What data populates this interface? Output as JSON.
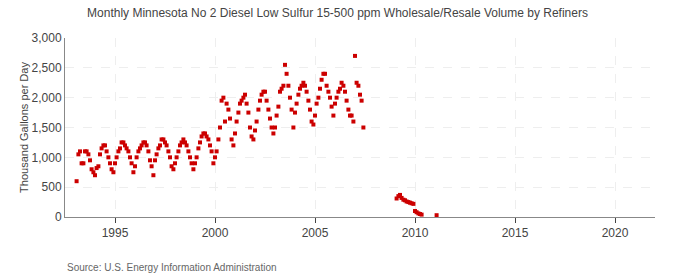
{
  "chart_data": {
    "type": "scatter",
    "title": "Monthly Minnesota No 2 Diesel Low Sulfur 15-500 ppm Wholesale/Resale Volume by Refiners",
    "ylabel": "Thousand Gallons per Day",
    "annotations": [
      "Source: U.S. Energy Information Administration"
    ],
    "color": "#cc0000",
    "marker": "square",
    "grid": true,
    "xlim": [
      1992.5,
      2022
    ],
    "ylim": [
      0,
      3000
    ],
    "xticks": [
      1995,
      2000,
      2005,
      2010,
      2015,
      2020
    ],
    "yticks": [
      0,
      500,
      {
        "value": 1000,
        "label": "1,000"
      },
      {
        "value": 1500,
        "label": "1,500"
      },
      {
        "value": 2000,
        "label": "2,000"
      },
      {
        "value": 2500,
        "label": "2,500"
      },
      {
        "value": 3000,
        "label": "3,000"
      }
    ],
    "x": [
      1993.08,
      1993.17,
      1993.25,
      1993.33,
      1993.42,
      1993.5,
      1993.58,
      1993.67,
      1993.75,
      1993.83,
      1993.92,
      1994.0,
      1994.08,
      1994.17,
      1994.25,
      1994.33,
      1994.42,
      1994.5,
      1994.58,
      1994.67,
      1994.75,
      1994.83,
      1994.92,
      1995.0,
      1995.08,
      1995.17,
      1995.25,
      1995.33,
      1995.42,
      1995.5,
      1995.58,
      1995.67,
      1995.75,
      1995.83,
      1995.92,
      1996.0,
      1996.08,
      1996.17,
      1996.25,
      1996.33,
      1996.42,
      1996.5,
      1996.58,
      1996.67,
      1996.75,
      1996.83,
      1996.92,
      1997.0,
      1997.08,
      1997.17,
      1997.25,
      1997.33,
      1997.42,
      1997.5,
      1997.58,
      1997.67,
      1997.75,
      1997.83,
      1997.92,
      1998.0,
      1998.08,
      1998.17,
      1998.25,
      1998.33,
      1998.42,
      1998.5,
      1998.58,
      1998.67,
      1998.75,
      1998.83,
      1998.92,
      1999.0,
      1999.08,
      1999.17,
      1999.25,
      1999.33,
      1999.42,
      1999.5,
      1999.58,
      1999.67,
      1999.75,
      1999.83,
      1999.92,
      2000.0,
      2000.08,
      2000.17,
      2000.25,
      2000.33,
      2000.42,
      2000.5,
      2000.58,
      2000.67,
      2000.75,
      2000.83,
      2000.92,
      2001.0,
      2001.08,
      2001.17,
      2001.25,
      2001.33,
      2001.42,
      2001.5,
      2001.58,
      2001.67,
      2001.75,
      2001.83,
      2001.92,
      2002.0,
      2002.08,
      2002.17,
      2002.25,
      2002.33,
      2002.42,
      2002.5,
      2002.58,
      2002.67,
      2002.75,
      2002.83,
      2002.92,
      2003.0,
      2003.08,
      2003.17,
      2003.25,
      2003.33,
      2003.42,
      2003.5,
      2003.58,
      2003.67,
      2003.75,
      2003.83,
      2003.92,
      2004.0,
      2004.08,
      2004.17,
      2004.25,
      2004.33,
      2004.42,
      2004.5,
      2004.58,
      2004.67,
      2004.75,
      2004.83,
      2004.92,
      2005.0,
      2005.08,
      2005.17,
      2005.25,
      2005.33,
      2005.42,
      2005.5,
      2005.58,
      2005.67,
      2005.75,
      2005.83,
      2005.92,
      2006.0,
      2006.08,
      2006.17,
      2006.25,
      2006.33,
      2006.42,
      2006.5,
      2006.58,
      2006.67,
      2006.75,
      2006.83,
      2006.92,
      2007.0,
      2007.08,
      2007.17,
      2007.25,
      2007.33,
      2007.42,
      2009.08,
      2009.17,
      2009.25,
      2009.33,
      2009.42,
      2009.5,
      2009.58,
      2009.67,
      2009.75,
      2009.83,
      2009.92,
      2010.0,
      2010.08,
      2010.17,
      2010.25,
      2010.33,
      2011.08
    ],
    "values": [
      600,
      1050,
      1100,
      900,
      900,
      1100,
      1100,
      1050,
      950,
      800,
      750,
      700,
      820,
      850,
      1050,
      1150,
      1200,
      1200,
      1100,
      1000,
      900,
      800,
      750,
      900,
      1000,
      1100,
      1150,
      1250,
      1250,
      1200,
      1150,
      1100,
      1000,
      900,
      750,
      850,
      1000,
      1100,
      1150,
      1200,
      1250,
      1250,
      1200,
      1100,
      950,
      850,
      700,
      950,
      1050,
      1150,
      1200,
      1300,
      1300,
      1250,
      1200,
      1100,
      1000,
      850,
      800,
      900,
      1000,
      1100,
      1200,
      1250,
      1300,
      1250,
      1200,
      1100,
      1000,
      900,
      800,
      900,
      1000,
      1150,
      1250,
      1350,
      1400,
      1400,
      1350,
      1300,
      1200,
      1100,
      900,
      1000,
      1100,
      1300,
      1500,
      1950,
      2000,
      1600,
      1900,
      1800,
      1650,
      1300,
      1200,
      1400,
      1600,
      1750,
      1900,
      1950,
      2000,
      2050,
      1900,
      1750,
      1500,
      1350,
      1300,
      1450,
      1600,
      1800,
      1950,
      2050,
      2100,
      2100,
      1950,
      1800,
      1650,
      1500,
      1400,
      1500,
      1700,
      1850,
      2100,
      2150,
      2200,
      2550,
      2400,
      2200,
      2000,
      1800,
      1500,
      1750,
      1900,
      2050,
      2150,
      2200,
      2250,
      2200,
      2100,
      1950,
      1800,
      1600,
      1550,
      1700,
      1900,
      2000,
      2150,
      2300,
      2400,
      2400,
      2200,
      2100,
      2000,
      1850,
      1700,
      1900,
      2000,
      2100,
      2150,
      2250,
      2200,
      2100,
      1950,
      1800,
      1700,
      1700,
      1600,
      2700,
      2250,
      2200,
      2050,
      1950,
      1500,
      310,
      350,
      370,
      320,
      290,
      280,
      260,
      250,
      240,
      230,
      220,
      100,
      80,
      60,
      50,
      40,
      30
    ]
  }
}
